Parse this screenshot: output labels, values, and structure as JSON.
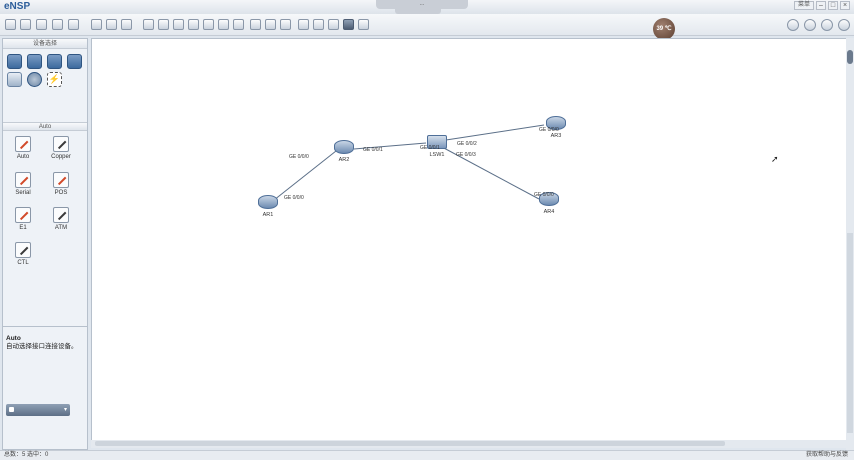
{
  "app": {
    "title": "eNSP"
  },
  "titlebar": {
    "center_text": "...",
    "menu_label": "菜单",
    "minimize": "–",
    "maximize": "□",
    "close": "×"
  },
  "toolbar": {
    "badge_text": "39 ℃"
  },
  "left_panel": {
    "header": "设备选择",
    "auto_header": "Auto",
    "cables": [
      {
        "label": "Auto"
      },
      {
        "label": "Copper"
      },
      {
        "label": "Serial"
      },
      {
        "label": "POS"
      },
      {
        "label": "E1"
      },
      {
        "label": "ATM"
      },
      {
        "label": "CTL"
      }
    ],
    "description": {
      "title": "Auto",
      "text": "自动选择接口连接设备。"
    }
  },
  "topology": {
    "nodes": [
      {
        "name": "AR1"
      },
      {
        "name": "AR2"
      },
      {
        "name": "LSW1"
      },
      {
        "name": "AR3"
      },
      {
        "name": "AR4"
      }
    ],
    "ports": [
      {
        "label": "GE 0/0/0"
      },
      {
        "label": "GE 0/0/0"
      },
      {
        "label": "GE 0/0/1"
      },
      {
        "label": "GE 0/0/1"
      },
      {
        "label": "GE 0/0/2"
      },
      {
        "label": "GE 0/0/0"
      },
      {
        "label": "GE 0/0/3"
      },
      {
        "label": "GE 0/0/0"
      }
    ]
  },
  "statusbar": {
    "left": "总数：5 选中：0",
    "right": "获取帮助与反馈"
  },
  "colors": {
    "link": "#5b6f88",
    "accent": "#2c5d9a"
  }
}
